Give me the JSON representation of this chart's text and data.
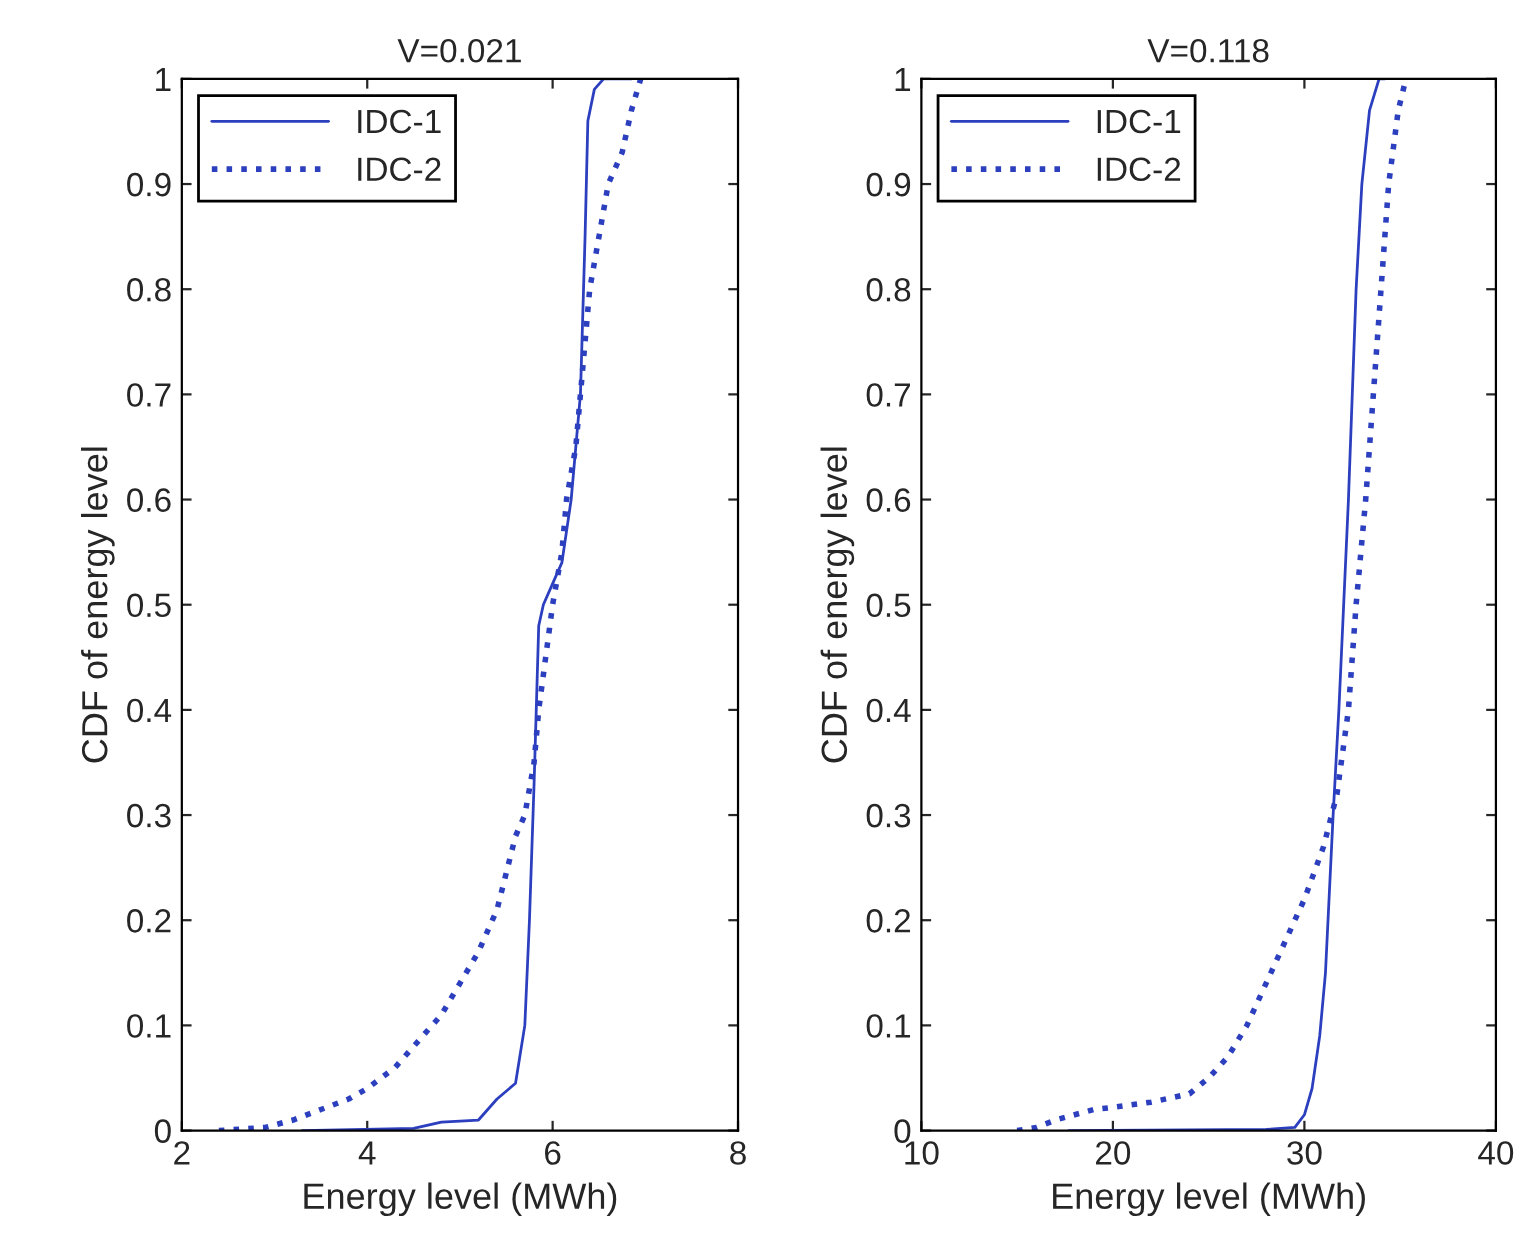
{
  "chart_data": [
    {
      "type": "line",
      "title": "V=0.021",
      "xlabel": "Energy level (MWh)",
      "ylabel": "CDF of energy level",
      "xlim": [
        2,
        8
      ],
      "xticks": [
        2,
        4,
        6,
        8
      ],
      "ylim": [
        0,
        1
      ],
      "yticks": [
        0,
        0.1,
        0.2,
        0.3,
        0.4,
        0.5,
        0.6,
        0.7,
        0.8,
        0.9,
        1
      ],
      "legend": "top left",
      "grid": false,
      "series": [
        {
          "name": "IDC-1",
          "color": "#2b3fbf",
          "line_style": "solid",
          "x": [
            3.3,
            4.5,
            4.8,
            5.2,
            5.3,
            5.4,
            5.6,
            5.7,
            5.75,
            5.8,
            5.85,
            5.9,
            6.0,
            6.1,
            6.2,
            6.3,
            6.35,
            6.38,
            6.45,
            6.55,
            6.85
          ],
          "values": [
            0,
            0.002,
            0.008,
            0.01,
            0.02,
            0.03,
            0.045,
            0.1,
            0.2,
            0.33,
            0.48,
            0.5,
            0.52,
            0.54,
            0.6,
            0.7,
            0.85,
            0.96,
            0.99,
            1.0,
            1.0
          ]
        },
        {
          "name": "IDC-2",
          "color": "#2b3fbf",
          "line_style": "dotted",
          "x": [
            2.4,
            2.9,
            3.2,
            3.5,
            3.8,
            4.0,
            4.3,
            4.6,
            4.8,
            5.0,
            5.2,
            5.4,
            5.6,
            5.7,
            5.8,
            5.85,
            6.0,
            6.1,
            6.15,
            6.25,
            6.3,
            6.4,
            6.5,
            6.6,
            6.75,
            6.85,
            6.95
          ],
          "values": [
            0,
            0.003,
            0.01,
            0.02,
            0.03,
            0.04,
            0.06,
            0.09,
            0.11,
            0.14,
            0.17,
            0.21,
            0.28,
            0.3,
            0.35,
            0.4,
            0.5,
            0.55,
            0.6,
            0.65,
            0.7,
            0.8,
            0.85,
            0.9,
            0.93,
            0.97,
            1.0
          ]
        }
      ]
    },
    {
      "type": "line",
      "title": "V=0.118",
      "xlabel": "Energy level (MWh)",
      "ylabel": "CDF of energy level",
      "xlim": [
        10,
        40
      ],
      "xticks": [
        10,
        20,
        30,
        40
      ],
      "ylim": [
        0,
        1
      ],
      "yticks": [
        0,
        0.1,
        0.2,
        0.3,
        0.4,
        0.5,
        0.6,
        0.7,
        0.8,
        0.9,
        1
      ],
      "legend": "top left",
      "grid": false,
      "series": [
        {
          "name": "IDC-1",
          "color": "#2b3fbf",
          "line_style": "solid",
          "x": [
            17.7,
            28,
            29.5,
            30,
            30.4,
            30.8,
            31.1,
            31.5,
            31.8,
            32.3,
            32.7,
            33.0,
            33.4,
            33.9,
            34.2
          ],
          "values": [
            0,
            0.001,
            0.003,
            0.015,
            0.04,
            0.09,
            0.15,
            0.3,
            0.4,
            0.6,
            0.8,
            0.9,
            0.97,
            1.0,
            1.0
          ]
        },
        {
          "name": "IDC-2",
          "color": "#2b3fbf",
          "line_style": "dotted",
          "x": [
            15,
            16,
            17,
            18,
            19,
            20,
            22,
            24,
            25,
            26,
            27,
            28,
            29,
            30,
            31,
            31.7,
            32.3,
            32.7,
            33.2,
            33.6,
            34,
            34.4,
            34.9,
            35.3
          ],
          "values": [
            0,
            0.003,
            0.01,
            0.015,
            0.02,
            0.022,
            0.027,
            0.035,
            0.05,
            0.07,
            0.1,
            0.14,
            0.18,
            0.22,
            0.27,
            0.32,
            0.4,
            0.5,
            0.6,
            0.7,
            0.8,
            0.9,
            0.97,
            1.0
          ]
        }
      ]
    }
  ]
}
